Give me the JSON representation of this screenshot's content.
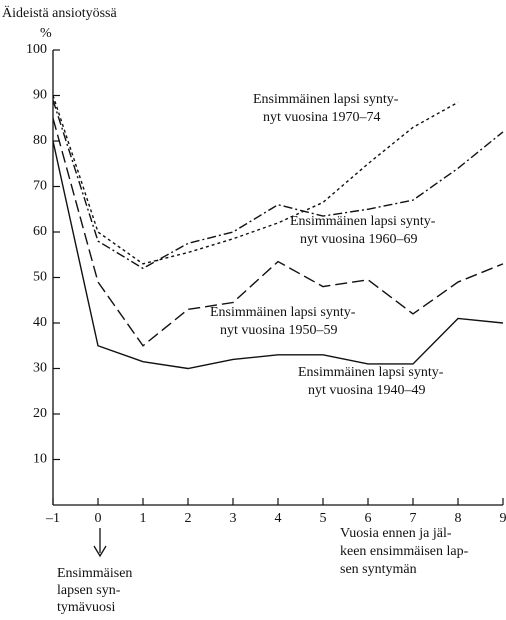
{
  "chart_data": {
    "type": "line",
    "y_label": "Äideistä ansiotyössä",
    "y_unit": "%",
    "x_label": [
      "Vuosia ennen ja jäl-",
      "keen ensimmäisen lap-",
      "sen syntymän"
    ],
    "annotation": [
      "Ensimmäisen",
      "lapsen syn-",
      "tymävuosi"
    ],
    "x": [
      -1,
      0,
      1,
      2,
      3,
      4,
      5,
      6,
      7,
      8,
      9
    ],
    "xlim": [
      -1,
      9
    ],
    "xticks": [
      {
        "value": -1,
        "label": "–1"
      },
      0,
      1,
      2,
      3,
      4,
      5,
      6,
      7,
      8,
      9
    ],
    "ylim": [
      0,
      100
    ],
    "yticks": [
      10,
      20,
      30,
      40,
      50,
      60,
      70,
      80,
      90,
      100
    ],
    "series": [
      {
        "label": [
          "Ensimmäinen lapsi synty-",
          "nyt vuosina 1970–74"
        ],
        "color": "#111",
        "dash": "3 3",
        "values": [
          90,
          60,
          53,
          55.5,
          58.5,
          62,
          66.5,
          75,
          83,
          88.5,
          null
        ]
      },
      {
        "label": [
          "Ensimmäinen lapsi synty-",
          "nyt vuosina 1960–69"
        ],
        "color": "#111",
        "dash": "9 3 2 3",
        "values": [
          89,
          58,
          52,
          57.5,
          60,
          66,
          63.5,
          65,
          67,
          74,
          82
        ]
      },
      {
        "label": [
          "Ensimmäinen lapsi synty-",
          "nyt vuosina 1950–59"
        ],
        "color": "#111",
        "dash": "12 5",
        "values": [
          85,
          49,
          35,
          43,
          44.5,
          53.5,
          48,
          49.5,
          42,
          49,
          53
        ]
      },
      {
        "label": [
          "Ensimmäinen lapsi synty-",
          "nyt vuosina 1940–49"
        ],
        "color": "#111",
        "dash": "none",
        "values": [
          80,
          35,
          31.5,
          30,
          32,
          33,
          33,
          31,
          31,
          41,
          40
        ]
      }
    ]
  }
}
